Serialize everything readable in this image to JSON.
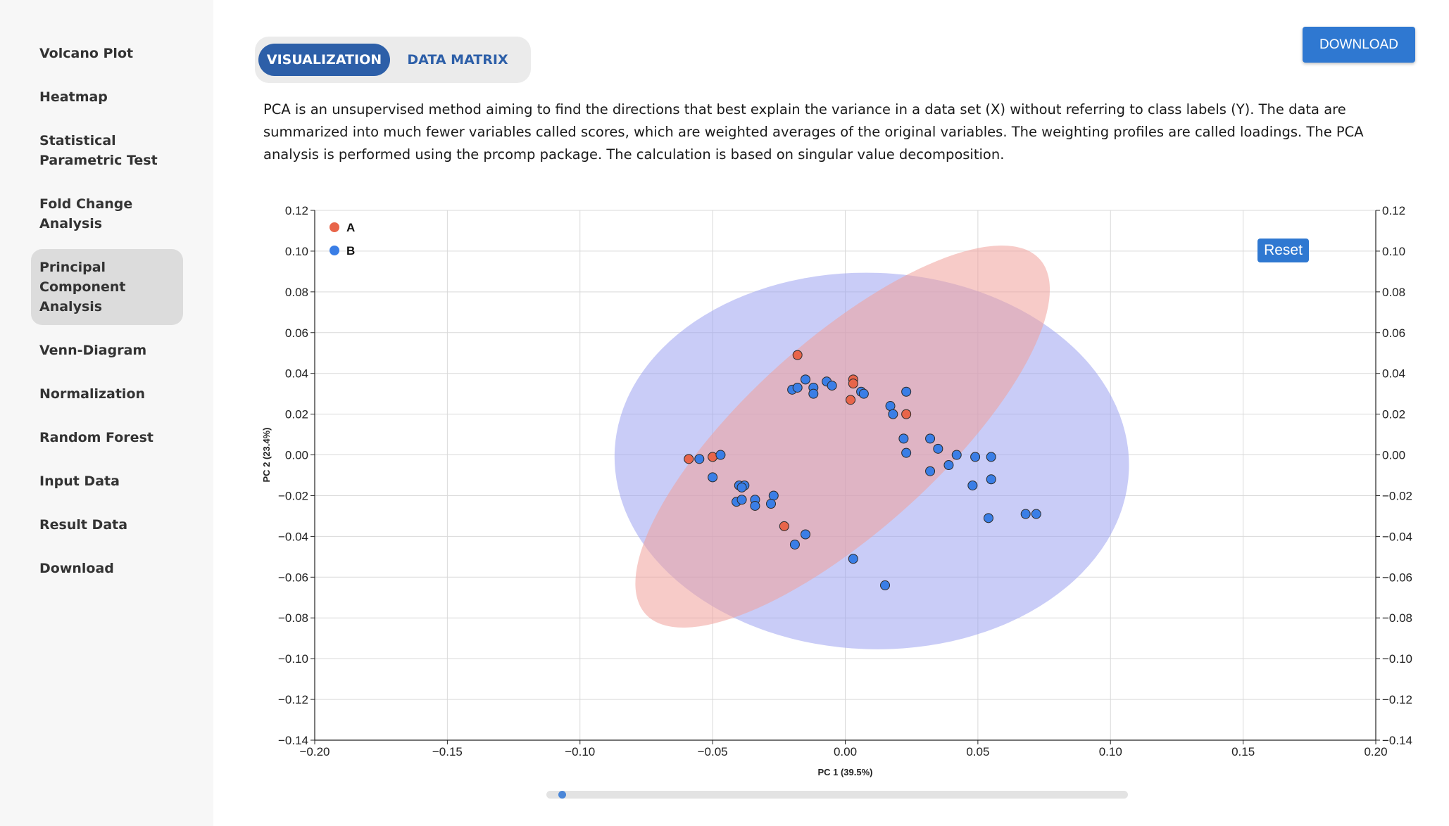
{
  "sidebar": {
    "items": [
      {
        "label": "Volcano Plot",
        "name": "sidebar-item-volcano-plot"
      },
      {
        "label": "Heatmap",
        "name": "sidebar-item-heatmap"
      },
      {
        "label": "Statistical Parametric Test",
        "name": "sidebar-item-statistical-parametric-test"
      },
      {
        "label": "Fold Change Analysis",
        "name": "sidebar-item-fold-change-analysis"
      },
      {
        "label": "Principal Component Analysis",
        "name": "sidebar-item-principal-component-analysis",
        "active": true
      },
      {
        "label": "Venn-Diagram",
        "name": "sidebar-item-venn-diagram"
      },
      {
        "label": "Normalization",
        "name": "sidebar-item-normalization"
      },
      {
        "label": "Random Forest",
        "name": "sidebar-item-random-forest"
      },
      {
        "label": "Input Data",
        "name": "sidebar-item-input-data"
      },
      {
        "label": "Result Data",
        "name": "sidebar-item-result-data"
      },
      {
        "label": "Download",
        "name": "sidebar-item-download"
      }
    ]
  },
  "tabs": {
    "visualization": "VISUALIZATION",
    "data_matrix": "DATA MATRIX",
    "active": "visualization"
  },
  "toolbar": {
    "download_label": "DOWNLOAD"
  },
  "description": "PCA is an unsupervised method aiming to find the directions that best explain the variance in a data set (X) without referring to class labels (Y). The data are summarized into much fewer variables called scores, which are weighted averages of the original variables. The weighting profiles are called loadings. The PCA analysis is performed using the prcomp package. The calculation is based on singular value decomposition.",
  "plot": {
    "reset_label": "Reset",
    "scroll_position": 0.02
  },
  "colors": {
    "accent": "#2f78d1",
    "tab_active": "#2d5fa8",
    "group_a": "#e8654a",
    "group_b": "#3a7ee6"
  },
  "chart_data": {
    "type": "scatter",
    "xlabel": "PC 1 (39.5%)",
    "ylabel": "PC 2 (23.4%)",
    "xlim": [
      -0.2,
      0.2
    ],
    "ylim": [
      -0.14,
      0.12
    ],
    "xticks": [
      -0.2,
      -0.15,
      -0.1,
      -0.05,
      0.0,
      0.05,
      0.1,
      0.15,
      0.2
    ],
    "yticks": [
      -0.14,
      -0.12,
      -0.1,
      -0.08,
      -0.06,
      -0.04,
      -0.02,
      0.0,
      0.02,
      0.04,
      0.06,
      0.08,
      0.1,
      0.12
    ],
    "xtick_labels": [
      "−0.20",
      "−0.15",
      "−0.10",
      "−0.05",
      "0.00",
      "0.05",
      "0.10",
      "0.15",
      "0.20"
    ],
    "ytick_labels": [
      "−0.14",
      "−0.12",
      "−0.10",
      "−0.08",
      "−0.06",
      "−0.04",
      "−0.02",
      "0.00",
      "0.02",
      "0.04",
      "0.06",
      "0.08",
      "0.10",
      "0.12"
    ],
    "grid": true,
    "legend_position": "top-left",
    "series": [
      {
        "name": "A",
        "color": "#e8654a",
        "ellipse_color": "#f0a09a",
        "points": [
          [
            -0.059,
            -0.002
          ],
          [
            -0.05,
            -0.001
          ],
          [
            -0.018,
            0.049
          ],
          [
            0.003,
            0.037
          ],
          [
            0.003,
            0.035
          ],
          [
            0.002,
            0.027
          ],
          [
            0.023,
            0.02
          ],
          [
            -0.023,
            -0.035
          ]
        ],
        "ellipse": {
          "cx": -0.001,
          "cy": 0.009,
          "rx": 0.1,
          "ry": 0.036,
          "angle_deg": 42
        }
      },
      {
        "name": "B",
        "color": "#3a7ee6",
        "ellipse_color": "#9da2f0",
        "points": [
          [
            -0.055,
            -0.002
          ],
          [
            -0.047,
            0.0
          ],
          [
            -0.05,
            -0.011
          ],
          [
            -0.04,
            -0.015
          ],
          [
            -0.038,
            -0.015
          ],
          [
            -0.039,
            -0.016
          ],
          [
            -0.041,
            -0.023
          ],
          [
            -0.039,
            -0.022
          ],
          [
            -0.034,
            -0.022
          ],
          [
            -0.034,
            -0.025
          ],
          [
            -0.027,
            -0.02
          ],
          [
            -0.028,
            -0.024
          ],
          [
            -0.015,
            -0.039
          ],
          [
            -0.019,
            -0.044
          ],
          [
            -0.02,
            0.032
          ],
          [
            -0.018,
            0.033
          ],
          [
            -0.015,
            0.037
          ],
          [
            -0.012,
            0.033
          ],
          [
            -0.012,
            0.03
          ],
          [
            -0.007,
            0.036
          ],
          [
            -0.005,
            0.034
          ],
          [
            0.006,
            0.031
          ],
          [
            0.007,
            0.03
          ],
          [
            0.017,
            0.024
          ],
          [
            0.018,
            0.02
          ],
          [
            0.023,
            0.031
          ],
          [
            0.022,
            0.008
          ],
          [
            0.023,
            0.001
          ],
          [
            0.032,
            0.008
          ],
          [
            0.035,
            0.003
          ],
          [
            0.039,
            -0.005
          ],
          [
            0.042,
            0.0
          ],
          [
            0.032,
            -0.008
          ],
          [
            0.049,
            -0.001
          ],
          [
            0.055,
            -0.001
          ],
          [
            0.055,
            -0.012
          ],
          [
            0.048,
            -0.015
          ],
          [
            0.054,
            -0.031
          ],
          [
            0.068,
            -0.029
          ],
          [
            0.072,
            -0.029
          ],
          [
            0.003,
            -0.051
          ],
          [
            0.015,
            -0.064
          ]
        ],
        "ellipse": {
          "cx": 0.01,
          "cy": -0.003,
          "rx": 0.097,
          "ry": 0.071,
          "angle_deg": -2
        }
      }
    ]
  }
}
